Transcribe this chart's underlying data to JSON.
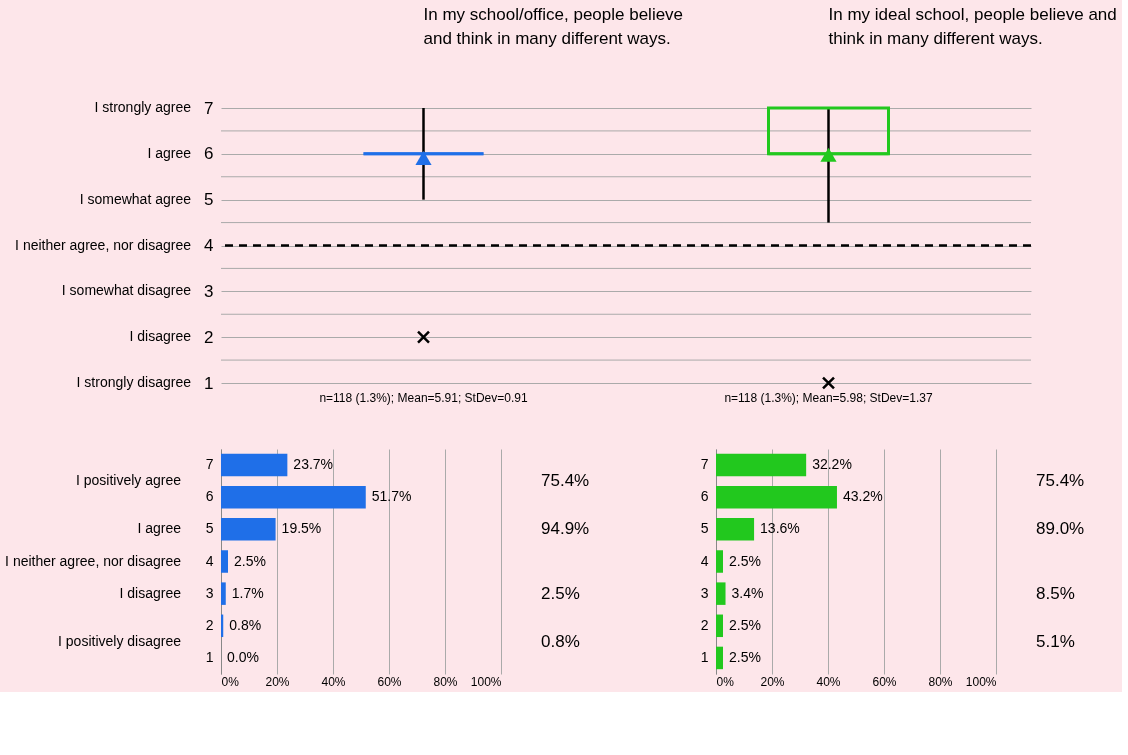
{
  "chart_data": [
    {
      "type": "box",
      "categories": [
        "In my school/office, people believe and think in many different ways.",
        "In my ideal school, people believe and think in many different ways."
      ],
      "boxes": [
        {
          "low": 5,
          "q1": 6,
          "median": 6,
          "q3": 6,
          "high": 7,
          "mean": 5.91,
          "outliers": [
            2
          ]
        },
        {
          "low": 4.5,
          "q1": 6,
          "median": 6,
          "q3": 7,
          "high": 7,
          "mean": 5.98,
          "outliers": [
            1
          ]
        }
      ],
      "colors": [
        "#1f6fe8",
        "#22c81e"
      ],
      "ylim": [
        1,
        7
      ],
      "yticks": [
        1,
        {
          "value": 1.5,
          "label": null
        },
        2,
        {
          "value": 2.5,
          "label": null
        },
        3,
        {
          "value": 3.5,
          "label": null
        },
        4,
        {
          "value": 4.5,
          "label": null
        },
        5,
        {
          "value": 5.5,
          "label": null
        },
        6,
        {
          "value": 6.5,
          "label": null
        },
        7
      ],
      "grid": "y",
      "ref_lines": [
        {
          "axis": "y",
          "value": 4,
          "color": "#000000",
          "line_style": "dashed"
        }
      ],
      "annotations": [
        "I strongly disagree",
        "I disagree",
        "I somewhat disagree",
        "I neither agree, nor disagree",
        "I somewhat agree",
        "I agree",
        "I strongly agree",
        "n=118 (1.3%); Mean=5.91; StDev=0.91",
        "n=118 (1.3%); Mean=5.98; StDev=1.37"
      ]
    },
    {
      "type": "bar",
      "orientation": "horizontal",
      "categories": [
        "7",
        "6",
        "5",
        "4",
        "3",
        "2",
        "1"
      ],
      "values": [
        23.7,
        51.7,
        19.5,
        2.5,
        1.7,
        0.8,
        0.0
      ],
      "color": "#1f6fe8",
      "value_labels": [
        "23.7%",
        "51.7%",
        "19.5%",
        "2.5%",
        "1.7%",
        "0.8%",
        "0.0%"
      ],
      "xlim": [
        0,
        100
      ],
      "xticks": [
        {
          "value": 0,
          "label": "0%"
        },
        {
          "value": 20,
          "label": "20%"
        },
        {
          "value": 40,
          "label": "40%"
        },
        {
          "value": 60,
          "label": "60%"
        },
        {
          "value": 80,
          "label": "80%"
        },
        {
          "value": 100,
          "label": "100%"
        }
      ],
      "grid": "x",
      "annotations": [
        "I positively agree",
        "I agree",
        "I neither agree, nor disagree",
        "I disagree",
        "I positively disagree",
        "75.4%",
        "94.9%",
        "2.5%",
        "0.8%"
      ]
    },
    {
      "type": "bar",
      "orientation": "horizontal",
      "categories": [
        "7",
        "6",
        "5",
        "4",
        "3",
        "2",
        "1"
      ],
      "values": [
        32.2,
        43.2,
        13.6,
        2.5,
        3.4,
        2.5,
        2.5
      ],
      "color": "#22c81e",
      "value_labels": [
        "32.2%",
        "43.2%",
        "13.6%",
        "2.5%",
        "3.4%",
        "2.5%",
        "2.5%"
      ],
      "xlim": [
        0,
        100
      ],
      "xticks": [
        {
          "value": 0,
          "label": "0%"
        },
        {
          "value": 20,
          "label": "20%"
        },
        {
          "value": 40,
          "label": "40%"
        },
        {
          "value": 60,
          "label": "60%"
        },
        {
          "value": 80,
          "label": "80%"
        },
        {
          "value": 100,
          "label": "100%"
        }
      ],
      "grid": "x",
      "annotations": [
        "75.4%",
        "89.0%",
        "8.5%",
        "5.1%"
      ]
    }
  ]
}
